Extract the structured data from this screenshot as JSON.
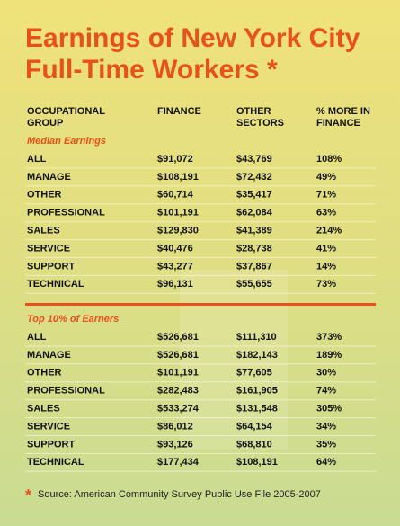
{
  "title": [
    "Earnings of New York City",
    "Full-Time Workers *"
  ],
  "headers": [
    [
      "OCCUPATIONAL",
      "GROUP"
    ],
    [
      "FINANCE"
    ],
    [
      "OTHER",
      "SECTORS"
    ],
    [
      "% MORE IN",
      "FINANCE"
    ]
  ],
  "sections": [
    {
      "label": "Median Earnings",
      "rows": [
        [
          "ALL",
          "$91,072",
          "$43,769",
          "108%"
        ],
        [
          "MANAGE",
          "$108,191",
          "$72,432",
          "49%"
        ],
        [
          "OTHER",
          "$60,714",
          "$35,417",
          "71%"
        ],
        [
          "PROFESSIONAL",
          "$101,191",
          "$62,084",
          "63%"
        ],
        [
          "SALES",
          "$129,830",
          "$41,389",
          "214%"
        ],
        [
          "SERVICE",
          "$40,476",
          "$28,738",
          "41%"
        ],
        [
          "SUPPORT",
          "$43,277",
          "$37,867",
          "14%"
        ],
        [
          "TECHNICAL",
          "$96,131",
          "$55,655",
          "73%"
        ]
      ]
    },
    {
      "label": "Top 10% of Earners",
      "rows": [
        [
          "ALL",
          "$526,681",
          "$111,310",
          "373%"
        ],
        [
          "MANAGE",
          "$526,681",
          "$182,143",
          "189%"
        ],
        [
          "OTHER",
          "$101,191",
          "$77,605",
          "30%"
        ],
        [
          "PROFESSIONAL",
          "$282,483",
          "$161,905",
          "74%"
        ],
        [
          "SALES",
          "$533,274",
          "$131,548",
          "305%"
        ],
        [
          "SERVICE",
          "$86,012",
          "$64,154",
          "34%"
        ],
        [
          "SUPPORT",
          "$93,126",
          "$68,810",
          "35%"
        ],
        [
          "TECHNICAL",
          "$177,434",
          "$108,191",
          "64%"
        ]
      ]
    }
  ],
  "footnote": {
    "mark": "*",
    "text": "Source: American Community Survey Public Use File 2005-2007"
  }
}
